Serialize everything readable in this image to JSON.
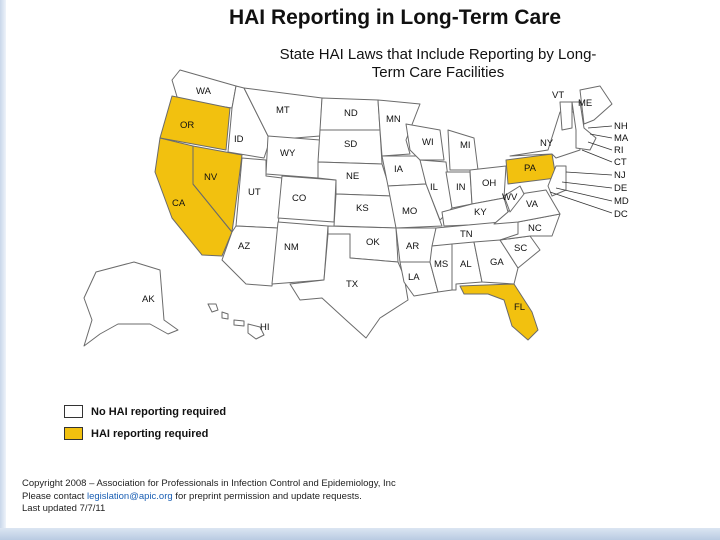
{
  "title": "HAI Reporting in Long-Term Care",
  "subtitle_line1": "State HAI Laws that Include Reporting by Long-",
  "subtitle_line2": "Term Care Facilities",
  "colors": {
    "required": "#f2c10f",
    "not_required": "#ffffff",
    "border": "#6b6b6b"
  },
  "states_required": [
    "OR",
    "CA",
    "NV",
    "PA",
    "FL"
  ],
  "state_labels": {
    "WA": "WA",
    "OR": "OR",
    "CA": "CA",
    "NV": "NV",
    "ID": "ID",
    "MT": "MT",
    "WY": "WY",
    "UT": "UT",
    "AZ": "AZ",
    "CO": "CO",
    "NM": "NM",
    "ND": "ND",
    "SD": "SD",
    "NE": "NE",
    "KS": "KS",
    "OK": "OK",
    "TX": "TX",
    "MN": "MN",
    "IA": "IA",
    "MO": "MO",
    "AR": "AR",
    "LA": "LA",
    "WI": "WI",
    "IL": "IL",
    "MI": "MI",
    "IN": "IN",
    "OH": "OH",
    "KY": "KY",
    "TN": "TN",
    "MS": "MS",
    "AL": "AL",
    "GA": "GA",
    "FL": "FL",
    "SC": "SC",
    "NC": "NC",
    "VA": "VA",
    "WV": "WV",
    "PA": "PA",
    "NY": "NY",
    "VT": "VT",
    "ME": "ME",
    "AK": "AK",
    "HI": "HI"
  },
  "northeast_labels": [
    "NH",
    "MA",
    "RI",
    "CT",
    "NJ",
    "DE",
    "MD",
    "DC"
  ],
  "legend": [
    {
      "label": "No HAI reporting required",
      "status": "not_required"
    },
    {
      "label": "HAI reporting required",
      "status": "required"
    }
  ],
  "footer": {
    "line1": "Copyright 2008 – Association for Professionals in Infection Control and Epidemiology, Inc",
    "line2_pre": "Please contact ",
    "email": "legislation@apic.org",
    "line2_post": " for preprint permission and update requests.",
    "line3": "Last updated 7/7/11"
  }
}
